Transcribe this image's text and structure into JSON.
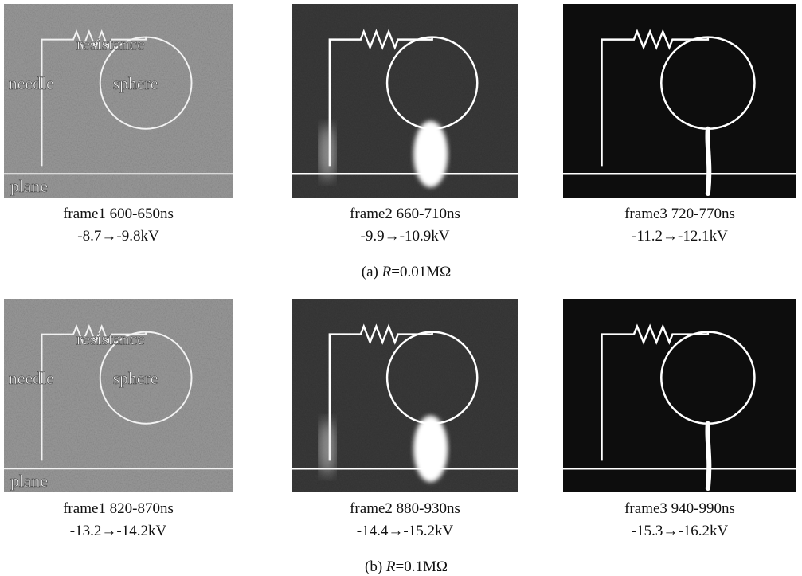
{
  "groups": [
    {
      "caption": {
        "prefix": "(a)",
        "variable": "R",
        "value": "=0.01MΩ"
      },
      "frames": [
        {
          "labels": {
            "resistance": "resistance",
            "needle": "needle",
            "sphere": "sphere",
            "plane": "plane"
          },
          "name": "frame1 600-650ns",
          "voltage": "-8.7→-9.8kV"
        },
        {
          "name": "frame2 660-710ns",
          "voltage": "-9.9→-10.9kV"
        },
        {
          "name": "frame3 720-770ns",
          "voltage": "-11.2→-12.1kV"
        }
      ]
    },
    {
      "caption": {
        "prefix": "(b)",
        "variable": "R",
        "value": "=0.1MΩ"
      },
      "frames": [
        {
          "labels": {
            "resistance": "resistance",
            "needle": "needle",
            "sphere": "sphere",
            "plane": "plane"
          },
          "name": "frame1 820-870ns",
          "voltage": "-13.2→-14.2kV"
        },
        {
          "name": "frame2 880-930ns",
          "voltage": "-14.4→-15.2kV"
        },
        {
          "name": "frame3 940-990ns",
          "voltage": "-15.3→-16.2kV"
        }
      ]
    }
  ]
}
